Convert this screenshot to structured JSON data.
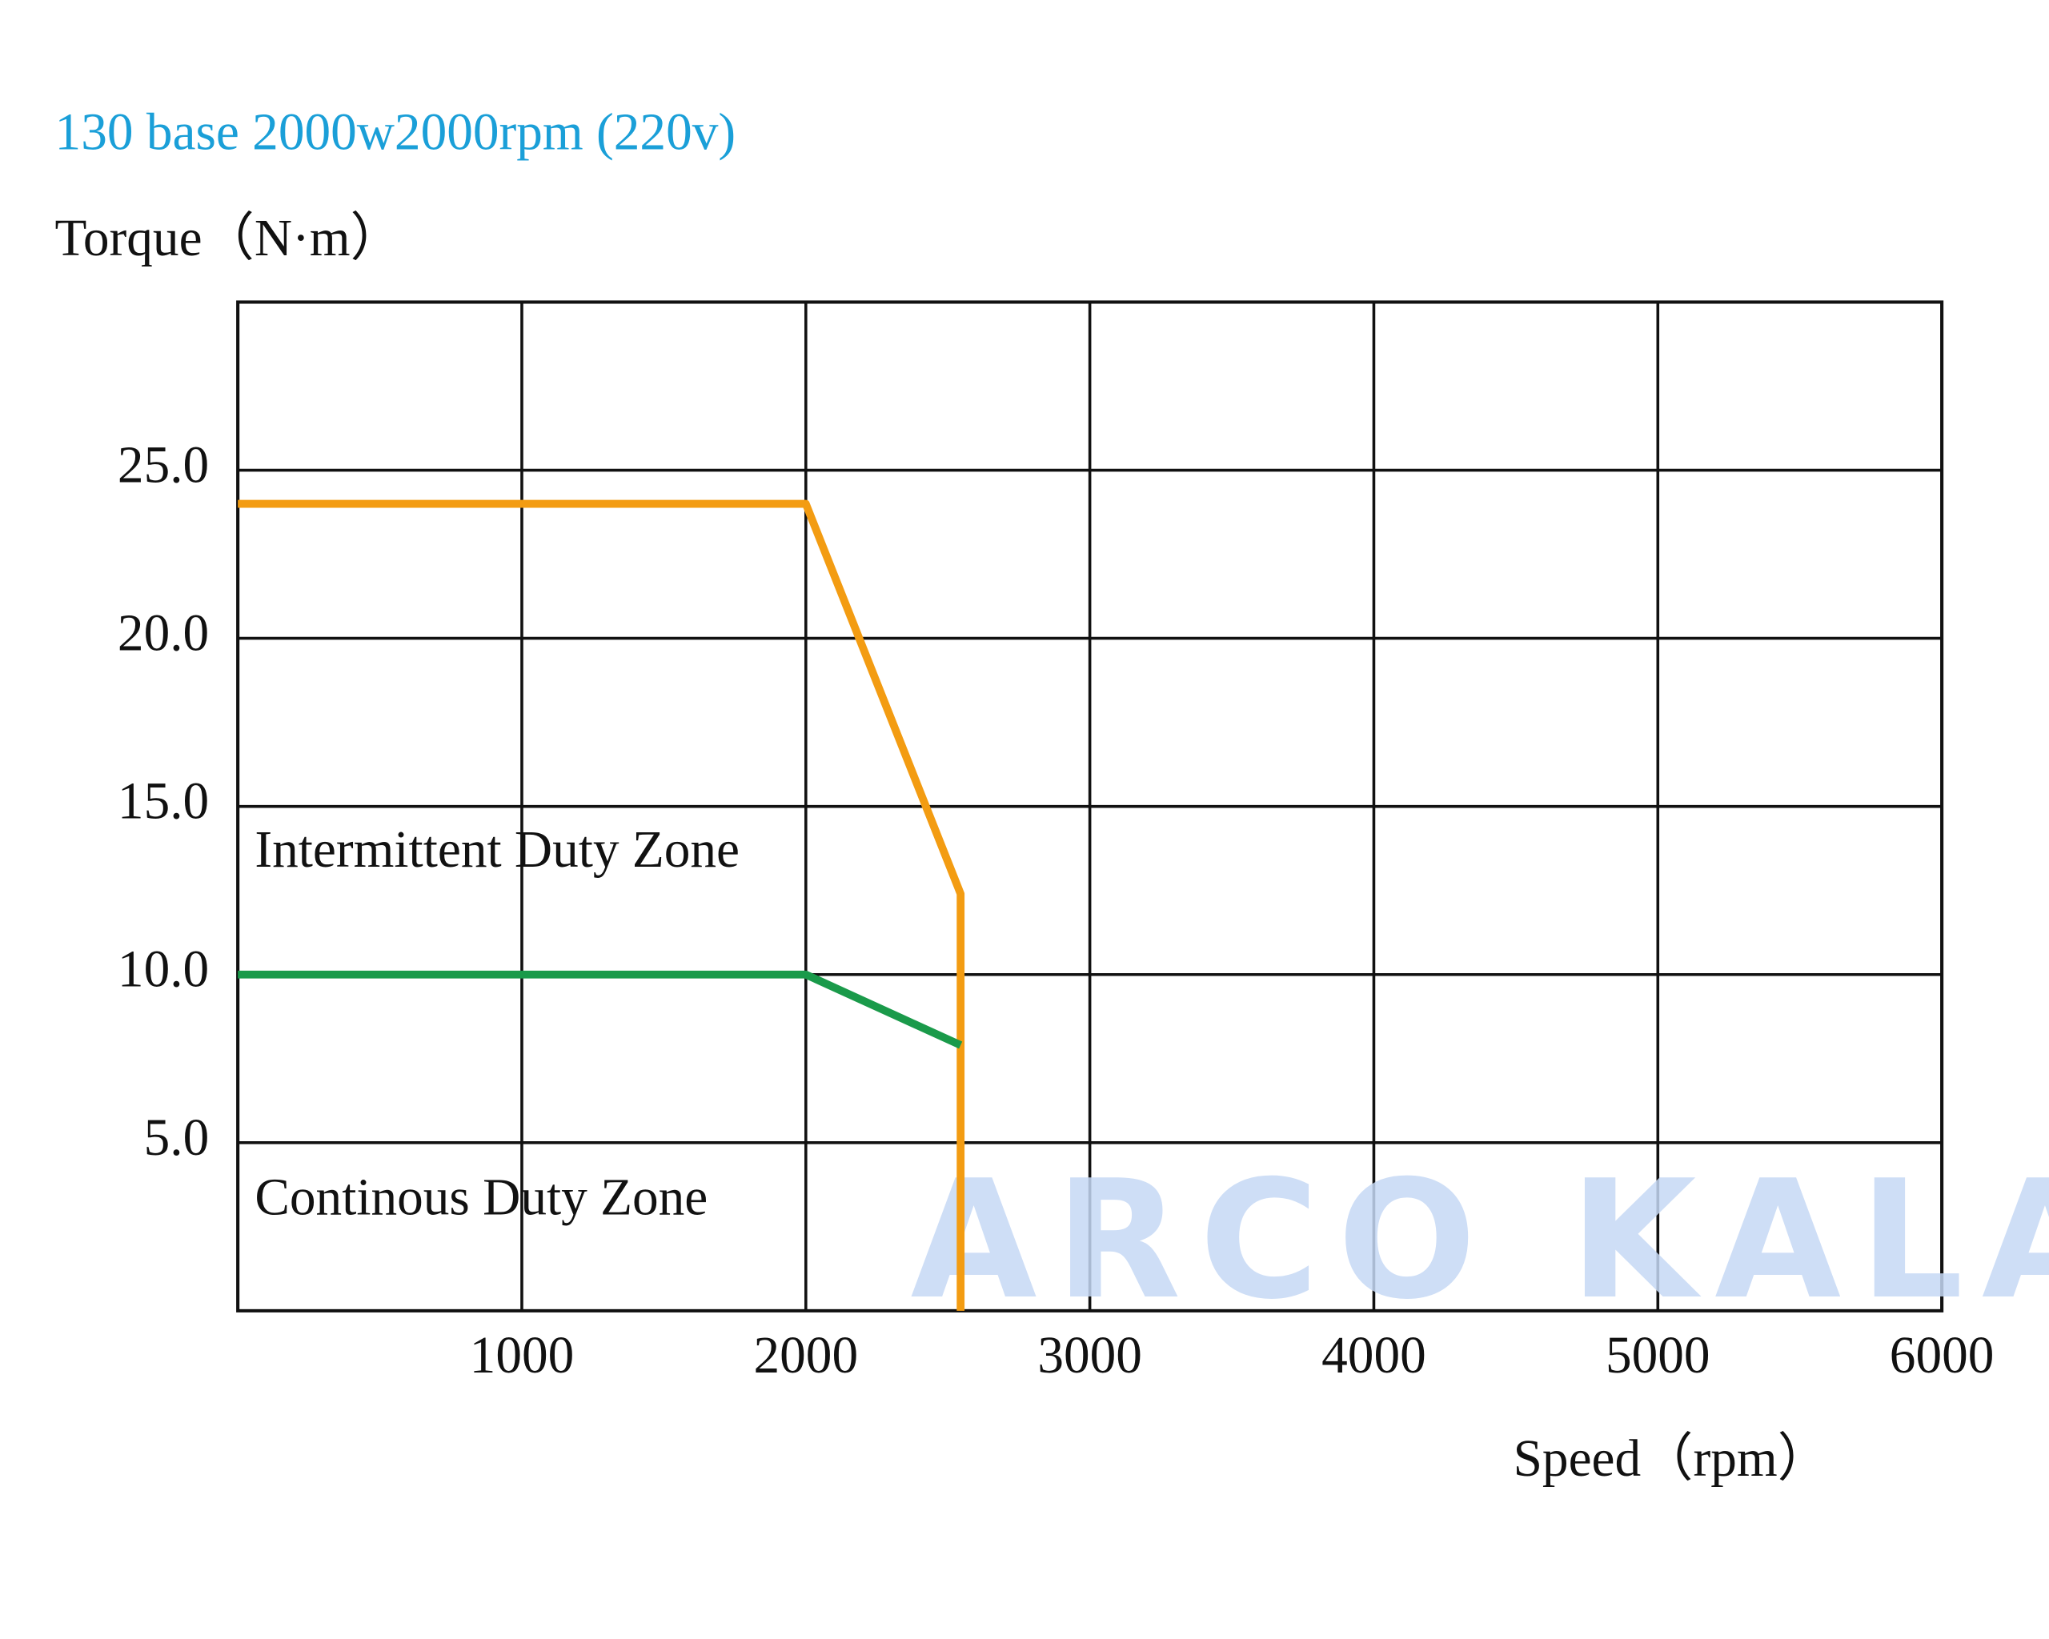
{
  "chart_data": {
    "type": "line",
    "title": "130 base 2000w2000rpm (220v)",
    "y_label": "Torque（N·m）",
    "x_label": "Speed（rpm）",
    "xlim": [
      0,
      6000
    ],
    "xticks": [
      1000,
      2000,
      3000,
      4000,
      5000,
      6000
    ],
    "ylim": [
      0,
      30
    ],
    "yticks": [
      {
        "value": 5,
        "label": "5.0"
      },
      {
        "value": 10,
        "label": "10.0"
      },
      {
        "value": 15,
        "label": "15.0"
      },
      {
        "value": 20,
        "label": "20.0"
      },
      {
        "value": 25,
        "label": "25.0"
      }
    ],
    "grid": true,
    "series": [
      {
        "color": "#f39c12",
        "x": [
          0,
          2000,
          2545,
          2545
        ],
        "values": [
          24,
          24,
          12.4,
          0
        ]
      },
      {
        "color": "#1a9a4a",
        "x": [
          0,
          2000,
          2545
        ],
        "values": [
          10,
          10,
          7.9
        ]
      }
    ],
    "annotations": [
      "Intermittent Duty Zone",
      "Continous Duty Zone"
    ],
    "watermark": "ARCO KALA"
  }
}
